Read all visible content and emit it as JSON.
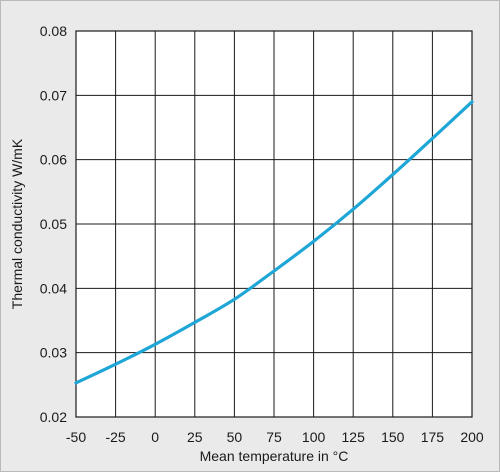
{
  "chart_data": {
    "type": "line",
    "xlabel": "Mean temperature in °C",
    "ylabel": "Thermal conductivity W/mK",
    "xlim": [
      -50,
      200
    ],
    "ylim": [
      0.02,
      0.08
    ],
    "x_ticks": [
      -50,
      -25,
      0,
      25,
      50,
      75,
      100,
      125,
      150,
      175,
      200
    ],
    "y_ticks": [
      "0.02",
      "0.03",
      "0.04",
      "0.05",
      "0.06",
      "0.07",
      "0.08"
    ],
    "grid": true,
    "series": [
      {
        "color": "#1ea6d6",
        "x": [
          -50,
          -25,
          0,
          25,
          50,
          75,
          100,
          125,
          150,
          175,
          200
        ],
        "y": [
          0.0253,
          0.0282,
          0.0313,
          0.0347,
          0.0383,
          0.0427,
          0.0473,
          0.0523,
          0.0577,
          0.0633,
          0.069
        ]
      }
    ]
  }
}
